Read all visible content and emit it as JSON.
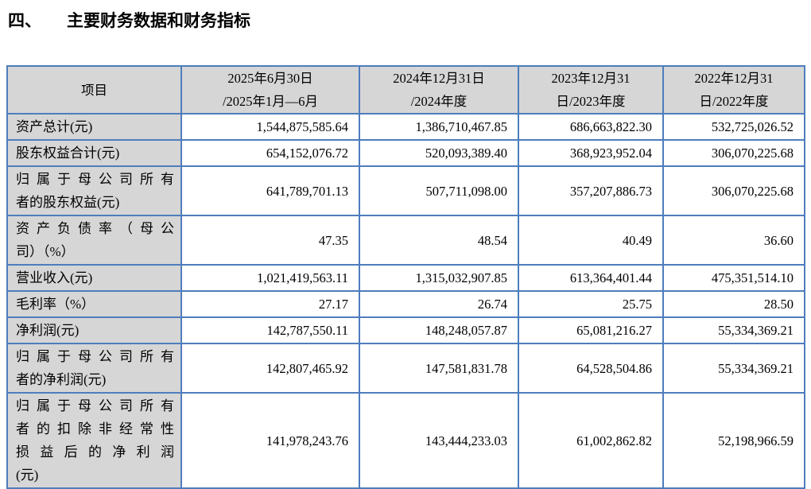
{
  "heading": {
    "number": "四、",
    "title": "主要财务数据和财务指标"
  },
  "table": {
    "border_color": "#4e7dbd",
    "header_bg": "#d6d6d6",
    "label_bg": "#d6d6d6",
    "columns": [
      {
        "lines": [
          "项目"
        ]
      },
      {
        "lines": [
          "2025年6月30日",
          "/2025年1月—6月"
        ]
      },
      {
        "lines": [
          "2024年12月31日",
          "/2024年度"
        ]
      },
      {
        "lines": [
          "2023年12月31",
          "日/2023年度"
        ]
      },
      {
        "lines": [
          "2022年12月31",
          "日/2022年度"
        ]
      }
    ],
    "rows": [
      {
        "label": [
          "资产总计(元)"
        ],
        "values": [
          "1,544,875,585.64",
          "1,386,710,467.85",
          "686,663,822.30",
          "532,725,026.52"
        ]
      },
      {
        "label": [
          "股东权益合计(元)"
        ],
        "values": [
          "654,152,076.72",
          "520,093,389.40",
          "368,923,952.04",
          "306,070,225.68"
        ]
      },
      {
        "label": [
          "归属于母公司所有",
          "者的股东权益(元)"
        ],
        "values": [
          "641,789,701.13",
          "507,711,098.00",
          "357,207,886.73",
          "306,070,225.68"
        ]
      },
      {
        "label": [
          "资产负债率（母公",
          "司）（%）"
        ],
        "values": [
          "47.35",
          "48.54",
          "40.49",
          "36.60"
        ]
      },
      {
        "label": [
          "营业收入(元)"
        ],
        "values": [
          "1,021,419,563.11",
          "1,315,032,907.85",
          "613,364,401.44",
          "475,351,514.10"
        ]
      },
      {
        "label": [
          "毛利率（%）"
        ],
        "values": [
          "27.17",
          "26.74",
          "25.75",
          "28.50"
        ]
      },
      {
        "label": [
          "净利润(元)"
        ],
        "values": [
          "142,787,550.11",
          "148,248,057.87",
          "65,081,216.27",
          "55,334,369.21"
        ]
      },
      {
        "label": [
          "归属于母公司所有",
          "者的净利润(元)"
        ],
        "values": [
          "142,807,465.92",
          "147,581,831.78",
          "64,528,504.86",
          "55,334,369.21"
        ]
      },
      {
        "label": [
          "归属于母公司所有",
          "者的扣除非经常性",
          "损益后的净利润",
          "(元)"
        ],
        "values": [
          "141,978,243.76",
          "143,444,233.03",
          "61,002,862.82",
          "52,198,966.59"
        ]
      }
    ]
  }
}
